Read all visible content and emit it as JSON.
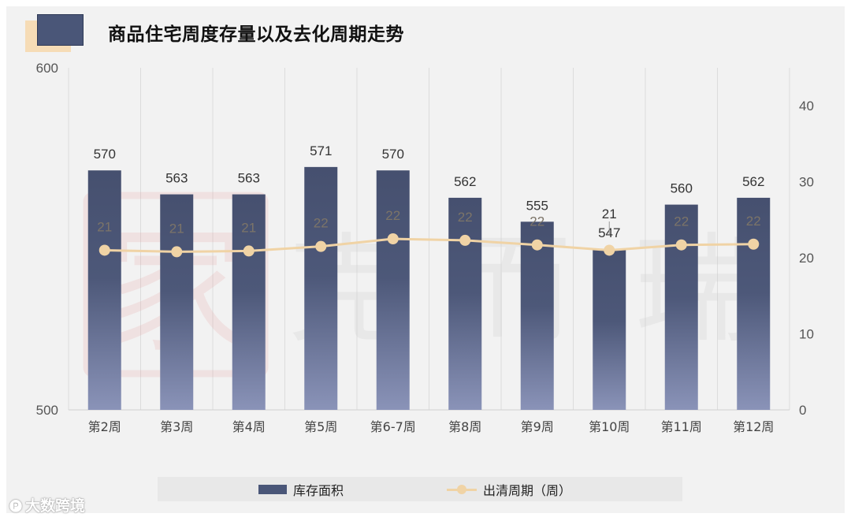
{
  "title": "商品住宅周度存量以及去化周期走势",
  "chart_data": {
    "type": "bar+line",
    "categories": [
      "第2周",
      "第3周",
      "第4周",
      "第5周",
      "第6-7周",
      "第8周",
      "第9周",
      "第10周",
      "第11周",
      "第12周"
    ],
    "series": [
      {
        "name": "库存面积",
        "type": "bar",
        "axis": "left",
        "values": [
          570,
          563,
          563,
          571,
          570,
          562,
          555,
          547,
          560,
          562
        ],
        "color": "#4a5678"
      },
      {
        "name": "出清周期（周）",
        "type": "line",
        "axis": "right",
        "values": [
          21,
          21,
          21,
          22,
          22,
          22,
          22,
          21,
          22,
          22
        ],
        "plotted": [
          21.0,
          20.8,
          20.9,
          21.5,
          22.5,
          22.3,
          21.7,
          21.0,
          21.7,
          21.8
        ],
        "color": "#f0d3a5"
      }
    ],
    "y_left": {
      "min": 500,
      "max": 600,
      "ticks": [
        "500",
        "600"
      ]
    },
    "y_right": {
      "min": 0,
      "max": 45,
      "ticks": [
        "0",
        "10",
        "20",
        "30",
        "40"
      ]
    },
    "grid": "vertical"
  },
  "legend": {
    "bar_label": "库存面积",
    "line_label": "出清周期（周）"
  },
  "brand": {
    "icon": "大数跨境-logo-icon",
    "text": "大数跨境"
  }
}
